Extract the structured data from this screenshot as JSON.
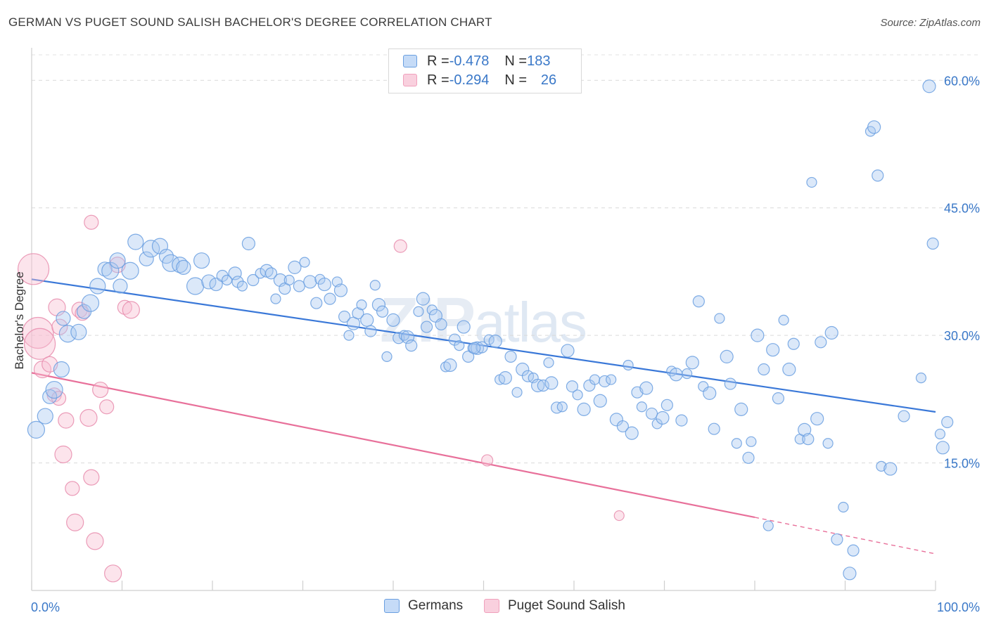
{
  "title": "GERMAN VS PUGET SOUND SALISH BACHELOR'S DEGREE CORRELATION CHART",
  "source": "Source: ZipAtlas.com",
  "watermark": {
    "bold": "ZIP",
    "light": "atlas"
  },
  "legend": {
    "rows": [
      {
        "r_label": "R = ",
        "r_value": "-0.478",
        "n_label": "N = ",
        "n_value": "183"
      },
      {
        "r_label": "R = ",
        "r_value": "-0.294",
        "n_label": "N = ",
        "n_value": "26"
      }
    ]
  },
  "colors": {
    "blue": "#6a9fe0",
    "blue_line": "#3a78d8",
    "pink": "#f0a0bc",
    "pink_line": "#e8709a",
    "tick_text": "#3a78c8"
  },
  "chart_data": {
    "type": "scatter",
    "title": "GERMAN VS PUGET SOUND SALISH BACHELOR'S DEGREE CORRELATION CHART",
    "xlabel": "",
    "ylabel": "Bachelor's Degree",
    "xlim": [
      0,
      100
    ],
    "ylim": [
      0,
      63
    ],
    "x_tick_labels": [
      "0.0%",
      "100.0%"
    ],
    "y_ticks": [
      15,
      30,
      45,
      60
    ],
    "y_tick_labels": [
      "15.0%",
      "30.0%",
      "45.0%",
      "60.0%"
    ],
    "grid": true,
    "legend_position": "top-center",
    "series": [
      {
        "name": "Germans",
        "color": "#6a9fe0",
        "trend": {
          "x": [
            0,
            100
          ],
          "y": [
            36.6,
            21.0
          ]
        },
        "points": [
          [
            0.5,
            18.9
          ],
          [
            1.5,
            20.5
          ],
          [
            2,
            22.8
          ],
          [
            2.5,
            23.6
          ],
          [
            3.3,
            26.0
          ],
          [
            3.5,
            32.0
          ],
          [
            4,
            30.2
          ],
          [
            5.2,
            30.4
          ],
          [
            5.8,
            32.8
          ],
          [
            6.5,
            33.8
          ],
          [
            7.3,
            35.8
          ],
          [
            8.1,
            37.8
          ],
          [
            8.7,
            37.6
          ],
          [
            9.5,
            38.8
          ],
          [
            9.8,
            35.8
          ],
          [
            10.9,
            37.6
          ],
          [
            11.5,
            41.0
          ],
          [
            12.7,
            39.0
          ],
          [
            13.2,
            40.2
          ],
          [
            14.2,
            40.5
          ],
          [
            14.9,
            39.3
          ],
          [
            15.4,
            38.5
          ],
          [
            16.4,
            38.3
          ],
          [
            16.8,
            38.0
          ],
          [
            18.1,
            35.8
          ],
          [
            18.8,
            38.8
          ],
          [
            19.6,
            36.3
          ],
          [
            20.4,
            36.0
          ],
          [
            21.1,
            37.0
          ],
          [
            21.6,
            36.5
          ],
          [
            22.5,
            37.3
          ],
          [
            22.8,
            36.3
          ],
          [
            23.3,
            35.8
          ],
          [
            24.0,
            40.8
          ],
          [
            24.5,
            36.5
          ],
          [
            25.3,
            37.3
          ],
          [
            26.0,
            37.6
          ],
          [
            26.5,
            37.3
          ],
          [
            27.0,
            34.3
          ],
          [
            27.5,
            36.5
          ],
          [
            28.0,
            35.5
          ],
          [
            28.5,
            36.5
          ],
          [
            29.1,
            38.0
          ],
          [
            29.6,
            35.8
          ],
          [
            30.2,
            38.6
          ],
          [
            30.8,
            36.3
          ],
          [
            31.5,
            33.8
          ],
          [
            31.9,
            36.6
          ],
          [
            32.4,
            36.0
          ],
          [
            33.0,
            34.3
          ],
          [
            33.8,
            36.3
          ],
          [
            34.2,
            35.3
          ],
          [
            34.6,
            32.2
          ],
          [
            35.1,
            30.0
          ],
          [
            35.6,
            31.4
          ],
          [
            36.1,
            32.6
          ],
          [
            36.5,
            33.6
          ],
          [
            37.1,
            31.8
          ],
          [
            37.5,
            30.5
          ],
          [
            38.0,
            35.9
          ],
          [
            38.4,
            33.6
          ],
          [
            38.8,
            32.8
          ],
          [
            39.3,
            27.5
          ],
          [
            40.0,
            31.8
          ],
          [
            40.6,
            29.7
          ],
          [
            41.2,
            30.0
          ],
          [
            41.6,
            29.8
          ],
          [
            42.0,
            28.8
          ],
          [
            42.8,
            32.8
          ],
          [
            43.3,
            34.3
          ],
          [
            43.7,
            31.0
          ],
          [
            44.3,
            33.0
          ],
          [
            44.7,
            32.3
          ],
          [
            45.3,
            31.3
          ],
          [
            45.8,
            26.3
          ],
          [
            46.3,
            26.5
          ],
          [
            46.8,
            29.5
          ],
          [
            47.3,
            28.8
          ],
          [
            47.8,
            31.0
          ],
          [
            48.3,
            27.5
          ],
          [
            48.8,
            28.5
          ],
          [
            49.3,
            28.5
          ],
          [
            49.8,
            28.6
          ],
          [
            50.6,
            29.5
          ],
          [
            51.3,
            29.3
          ],
          [
            49.0,
            28.5
          ],
          [
            51.8,
            24.8
          ],
          [
            52.4,
            25.0
          ],
          [
            53.0,
            27.5
          ],
          [
            53.7,
            23.3
          ],
          [
            54.3,
            26.0
          ],
          [
            54.9,
            25.2
          ],
          [
            55.5,
            25.0
          ],
          [
            56.0,
            24.1
          ],
          [
            56.6,
            24.1
          ],
          [
            57.2,
            26.8
          ],
          [
            57.5,
            24.4
          ],
          [
            58.1,
            21.5
          ],
          [
            58.7,
            21.6
          ],
          [
            59.3,
            28.2
          ],
          [
            59.8,
            24.0
          ],
          [
            60.4,
            23.0
          ],
          [
            61.1,
            21.3
          ],
          [
            61.7,
            24.1
          ],
          [
            62.3,
            24.8
          ],
          [
            62.9,
            22.3
          ],
          [
            63.4,
            24.6
          ],
          [
            64.1,
            24.8
          ],
          [
            64.7,
            20.1
          ],
          [
            65.4,
            19.3
          ],
          [
            66.0,
            26.5
          ],
          [
            66.4,
            18.5
          ],
          [
            67.0,
            23.3
          ],
          [
            67.5,
            21.6
          ],
          [
            68.0,
            23.8
          ],
          [
            68.6,
            20.8
          ],
          [
            69.2,
            19.6
          ],
          [
            69.8,
            20.3
          ],
          [
            70.3,
            21.8
          ],
          [
            70.8,
            25.8
          ],
          [
            71.3,
            25.4
          ],
          [
            71.9,
            20.0
          ],
          [
            72.5,
            25.5
          ],
          [
            73.1,
            26.8
          ],
          [
            73.8,
            34.0
          ],
          [
            74.3,
            24.0
          ],
          [
            75.0,
            23.2
          ],
          [
            75.5,
            19.0
          ],
          [
            76.1,
            32.0
          ],
          [
            76.9,
            27.5
          ],
          [
            77.3,
            24.3
          ],
          [
            78.0,
            17.3
          ],
          [
            78.5,
            21.3
          ],
          [
            79.3,
            15.6
          ],
          [
            79.6,
            17.5
          ],
          [
            80.3,
            30.0
          ],
          [
            81.0,
            26.0
          ],
          [
            81.5,
            7.6
          ],
          [
            82.0,
            28.3
          ],
          [
            82.6,
            22.6
          ],
          [
            83.2,
            31.8
          ],
          [
            83.8,
            26.0
          ],
          [
            84.3,
            29.0
          ],
          [
            85.0,
            17.8
          ],
          [
            85.5,
            18.9
          ],
          [
            85.9,
            17.8
          ],
          [
            86.3,
            48.0
          ],
          [
            86.9,
            20.2
          ],
          [
            87.3,
            29.2
          ],
          [
            88.1,
            17.3
          ],
          [
            88.5,
            30.3
          ],
          [
            89.1,
            6.0
          ],
          [
            89.8,
            9.8
          ],
          [
            90.5,
            2.0
          ],
          [
            90.9,
            4.7
          ],
          [
            92.8,
            54.0
          ],
          [
            93.2,
            54.5
          ],
          [
            93.6,
            48.8
          ],
          [
            94.0,
            14.6
          ],
          [
            95.0,
            14.3
          ],
          [
            96.5,
            20.5
          ],
          [
            98.4,
            25.0
          ],
          [
            99.3,
            59.3
          ],
          [
            99.7,
            40.8
          ],
          [
            100.5,
            18.4
          ],
          [
            100.8,
            16.8
          ],
          [
            101.3,
            19.8
          ]
        ]
      },
      {
        "name": "Puget Sound Salish",
        "color": "#f0a0bc",
        "trend": {
          "x": [
            0,
            80,
            100
          ],
          "y": [
            25.6,
            8.6,
            4.3
          ]
        },
        "points": [
          [
            0.2,
            37.8
          ],
          [
            0.7,
            30.3
          ],
          [
            0.9,
            29.0
          ],
          [
            1.2,
            26.0
          ],
          [
            2.0,
            26.6
          ],
          [
            2.5,
            23.0
          ],
          [
            2.8,
            33.3
          ],
          [
            3.1,
            31.0
          ],
          [
            3.0,
            22.6
          ],
          [
            3.5,
            16.0
          ],
          [
            3.8,
            20.0
          ],
          [
            4.5,
            12.0
          ],
          [
            4.8,
            8.0
          ],
          [
            5.3,
            33.0
          ],
          [
            5.6,
            32.6
          ],
          [
            6.3,
            20.3
          ],
          [
            6.6,
            13.3
          ],
          [
            6.6,
            43.3
          ],
          [
            7.0,
            5.8
          ],
          [
            7.6,
            23.6
          ],
          [
            8.3,
            21.6
          ],
          [
            9.0,
            2.0
          ],
          [
            9.5,
            38.3
          ],
          [
            10.3,
            33.3
          ],
          [
            11.0,
            33.0
          ],
          [
            50.4,
            15.3
          ],
          [
            65.0,
            8.8
          ],
          [
            40.8,
            40.5
          ]
        ]
      }
    ]
  }
}
